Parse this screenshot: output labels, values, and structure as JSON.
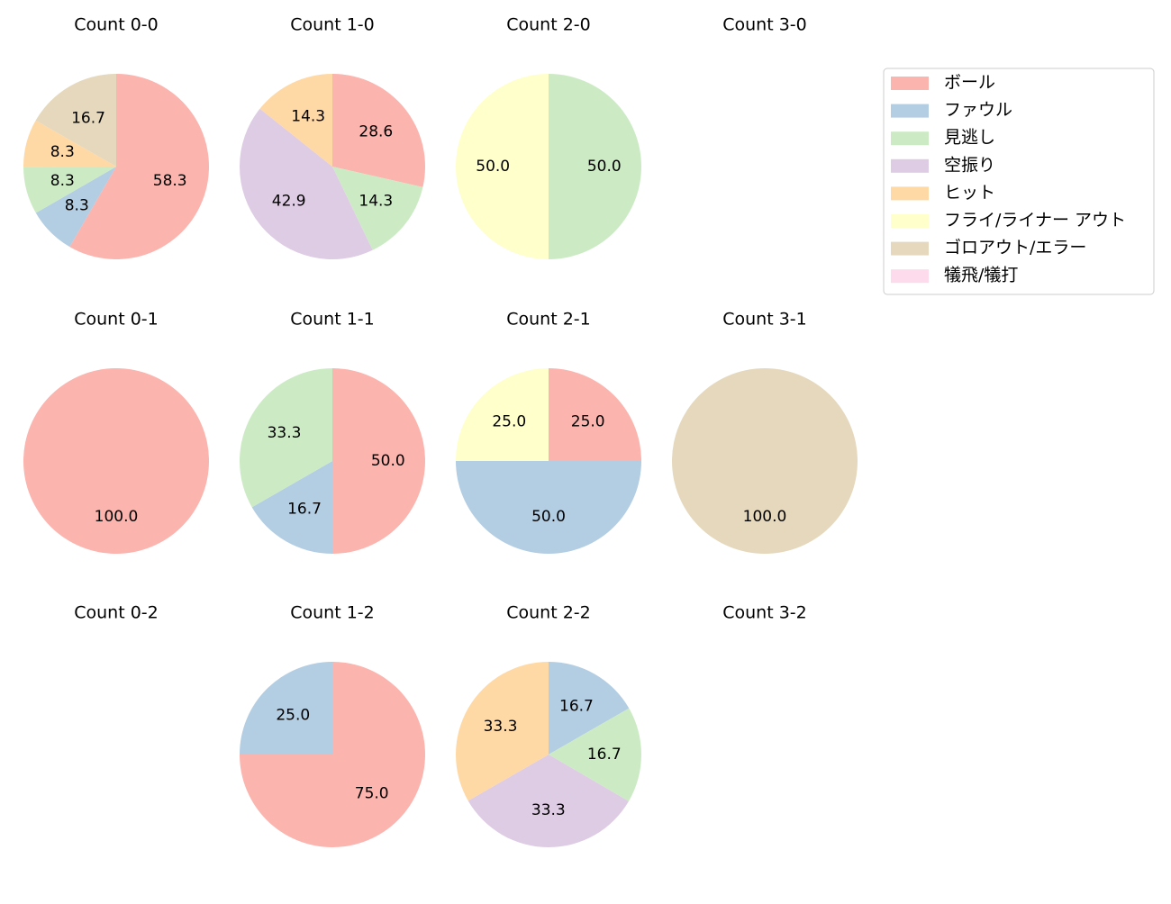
{
  "chart_data": [
    {
      "type": "pie",
      "title": "Count 0-0",
      "categories": [
        "ボール",
        "ファウル",
        "見逃し",
        "ヒット",
        "ゴロアウト/エラー"
      ],
      "values": [
        58.3,
        8.3,
        8.3,
        8.3,
        16.7
      ],
      "value_labels": [
        "58.3",
        "8.3",
        "8.3",
        "8.3",
        "16.7"
      ],
      "colors": [
        "#fbb4ae",
        "#b3cde3",
        "#ccebc5",
        "#fed9a6",
        "#e5d8bd"
      ]
    },
    {
      "type": "pie",
      "title": "Count 1-0",
      "categories": [
        "ボール",
        "見逃し",
        "空振り",
        "ヒット"
      ],
      "values": [
        28.6,
        14.3,
        42.9,
        14.3
      ],
      "value_labels": [
        "28.6",
        "14.3",
        "42.9",
        "14.3"
      ],
      "colors": [
        "#fbb4ae",
        "#ccebc5",
        "#decbe4",
        "#fed9a6"
      ]
    },
    {
      "type": "pie",
      "title": "Count 2-0",
      "categories": [
        "見逃し",
        "フライ/ライナー アウト"
      ],
      "values": [
        50,
        50
      ],
      "value_labels": [
        "50.0",
        "50.0"
      ],
      "colors": [
        "#ccebc5",
        "#ffffcc"
      ]
    },
    {
      "type": "pie",
      "title": "Count 3-0",
      "categories": [],
      "values": [],
      "value_labels": [],
      "colors": []
    },
    {
      "type": "pie",
      "title": "Count 0-1",
      "categories": [
        "ボール"
      ],
      "values": [
        100
      ],
      "value_labels": [
        "100.0"
      ],
      "colors": [
        "#fbb4ae"
      ]
    },
    {
      "type": "pie",
      "title": "Count 1-1",
      "categories": [
        "ボール",
        "ファウル",
        "見逃し"
      ],
      "values": [
        50,
        16.7,
        33.3
      ],
      "value_labels": [
        "50.0",
        "16.7",
        "33.3"
      ],
      "colors": [
        "#fbb4ae",
        "#b3cde3",
        "#ccebc5"
      ]
    },
    {
      "type": "pie",
      "title": "Count 2-1",
      "categories": [
        "ボール",
        "ファウル",
        "フライ/ライナー アウト"
      ],
      "values": [
        25,
        50,
        25
      ],
      "value_labels": [
        "25.0",
        "50.0",
        "25.0"
      ],
      "colors": [
        "#fbb4ae",
        "#b3cde3",
        "#ffffcc"
      ]
    },
    {
      "type": "pie",
      "title": "Count 3-1",
      "categories": [
        "ゴロアウト/エラー"
      ],
      "values": [
        100
      ],
      "value_labels": [
        "100.0"
      ],
      "colors": [
        "#e5d8bd"
      ]
    },
    {
      "type": "pie",
      "title": "Count 0-2",
      "categories": [],
      "values": [],
      "value_labels": [],
      "colors": []
    },
    {
      "type": "pie",
      "title": "Count 1-2",
      "categories": [
        "ボール",
        "ファウル"
      ],
      "values": [
        75,
        25
      ],
      "value_labels": [
        "75.0",
        "25.0"
      ],
      "colors": [
        "#fbb4ae",
        "#b3cde3"
      ]
    },
    {
      "type": "pie",
      "title": "Count 2-2",
      "categories": [
        "ファウル",
        "見逃し",
        "空振り",
        "ヒット"
      ],
      "values": [
        16.7,
        16.7,
        33.3,
        33.3
      ],
      "value_labels": [
        "16.7",
        "16.7",
        "33.3",
        "33.3"
      ],
      "colors": [
        "#b3cde3",
        "#ccebc5",
        "#decbe4",
        "#fed9a6"
      ]
    },
    {
      "type": "pie",
      "title": "Count 3-2",
      "categories": [],
      "values": [],
      "value_labels": [],
      "colors": []
    }
  ],
  "legend": {
    "labels": [
      "ボール",
      "ファウル",
      "見逃し",
      "空振り",
      "ヒット",
      "フライ/ライナー アウト",
      "ゴロアウト/エラー",
      "犠飛/犠打"
    ],
    "colors": [
      "#fbb4ae",
      "#b3cde3",
      "#ccebc5",
      "#decbe4",
      "#fed9a6",
      "#ffffcc",
      "#e5d8bd",
      "#fddaec"
    ]
  }
}
